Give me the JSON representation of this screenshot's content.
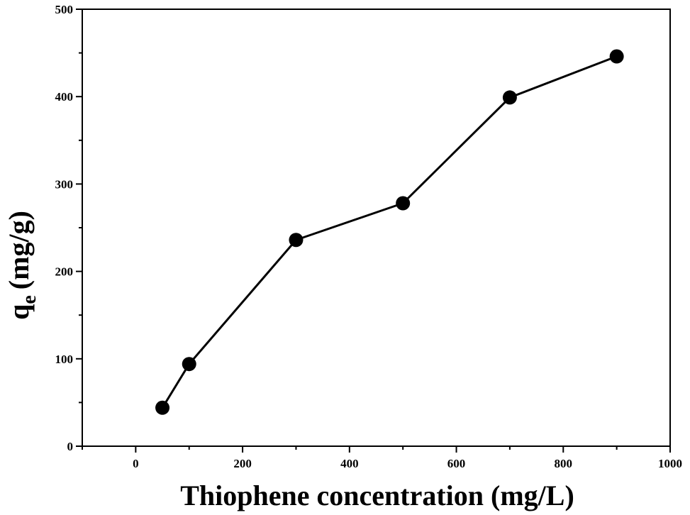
{
  "chart_data": {
    "type": "line",
    "title": "",
    "xlabel": "Thiophene concentration (mg/L)",
    "ylabel": {
      "main": "q",
      "subscript": "e",
      "unit": "(mg/g)"
    },
    "xlim": [
      -100,
      1000
    ],
    "ylim": [
      0,
      500
    ],
    "xticks": [
      0,
      200,
      400,
      600,
      800,
      1000
    ],
    "yticks": [
      0,
      100,
      200,
      300,
      400,
      500
    ],
    "grid": false,
    "legend": "none",
    "series": [
      {
        "x": [
          50,
          100,
          300,
          500,
          700,
          900
        ],
        "y": [
          44,
          94,
          236,
          278,
          399,
          446
        ],
        "color": "#000000",
        "marker": "filled-circle"
      }
    ]
  }
}
